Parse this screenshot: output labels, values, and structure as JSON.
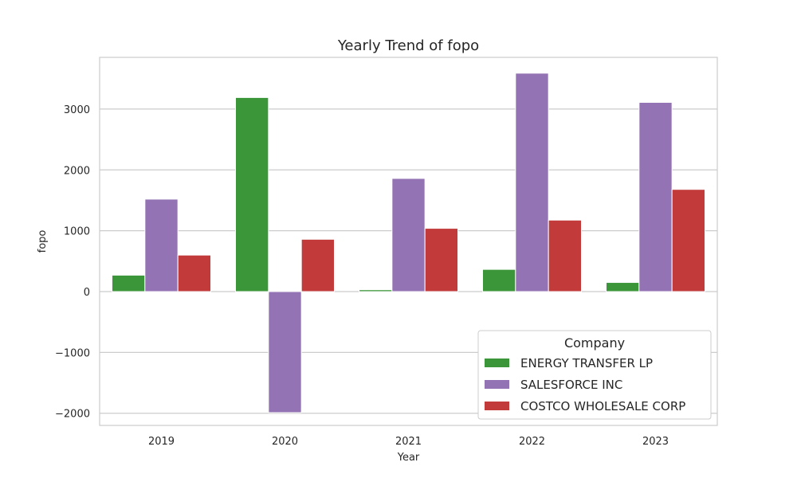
{
  "chart_data": {
    "type": "bar",
    "title": "Yearly Trend of fopo",
    "xlabel": "Year",
    "ylabel": "fopo",
    "categories": [
      "2019",
      "2020",
      "2021",
      "2022",
      "2023"
    ],
    "ylim": [
      -2200,
      3850
    ],
    "yticks": [
      -2000,
      -1000,
      0,
      1000,
      2000,
      3000
    ],
    "ytick_labels": [
      "−2000",
      "−1000",
      "0",
      "1000",
      "2000",
      "3000"
    ],
    "grid": true,
    "legend": {
      "title": "Company",
      "position": "bottom-right"
    },
    "series": [
      {
        "name": "ENERGY TRANSFER LP",
        "color": "#3a9639",
        "values": [
          270,
          3190,
          30,
          365,
          150
        ]
      },
      {
        "name": "SALESFORCE INC",
        "color": "#9473b4",
        "values": [
          1520,
          -1990,
          1860,
          3590,
          3110
        ]
      },
      {
        "name": "COSTCO WHOLESALE CORP",
        "color": "#c23a3a",
        "values": [
          600,
          860,
          1040,
          1175,
          1680
        ]
      }
    ]
  }
}
